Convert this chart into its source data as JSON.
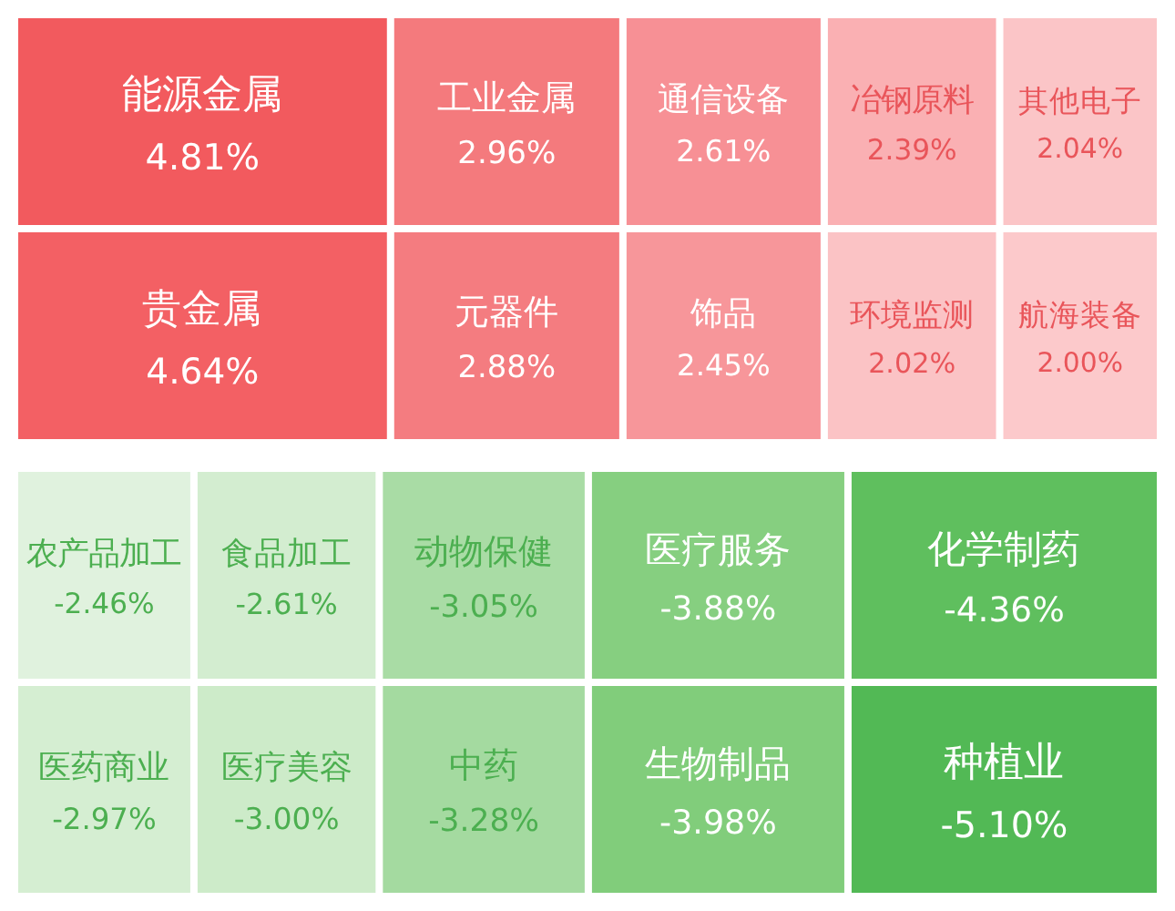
{
  "chart_data": [
    {
      "type": "other",
      "categories": [
        "能源金属",
        "贵金属",
        "工业金属",
        "元器件",
        "通信设备",
        "饰品",
        "冶钢原料",
        "环境监测",
        "其他电子",
        "航海装备"
      ],
      "values": [
        4.81,
        4.64,
        2.96,
        2.88,
        2.61,
        2.45,
        2.39,
        2.02,
        2.04,
        2.0
      ],
      "value_labels": [
        "4.81%",
        "4.64%",
        "2.96%",
        "2.88%",
        "2.61%",
        "2.45%",
        "2.39%",
        "2.02%",
        "2.04%",
        "2.00%"
      ],
      "colors": [
        "#f25a5e",
        "#f36064",
        "#f47a7d",
        "#f47c80",
        "#f79095",
        "#f7969a",
        "#fab0b3",
        "#fbc3c5",
        "#fbc5c7",
        "#fcc9cb"
      ]
    },
    {
      "type": "other",
      "categories": [
        "农产品加工",
        "医药商业",
        "食品加工",
        "医疗美容",
        "动物保健",
        "中药",
        "医疗服务",
        "生物制品",
        "化学制药",
        "种植业"
      ],
      "values": [
        -2.46,
        -2.97,
        -2.61,
        -3.0,
        -3.05,
        -3.28,
        -3.88,
        -3.98,
        -4.36,
        -5.1
      ],
      "value_labels": [
        "-2.46%",
        "-2.97%",
        "-2.61%",
        "-3.00%",
        "-3.05%",
        "-3.28%",
        "-3.88%",
        "-3.98%",
        "-4.36%",
        "-5.10%"
      ],
      "colors": [
        "#e0f2de",
        "#d5eed2",
        "#d3edd0",
        "#cdebc9",
        "#a9dca5",
        "#a4daa0",
        "#86cf80",
        "#81cd7b",
        "#5fbf5e",
        "#52b955"
      ]
    }
  ]
}
